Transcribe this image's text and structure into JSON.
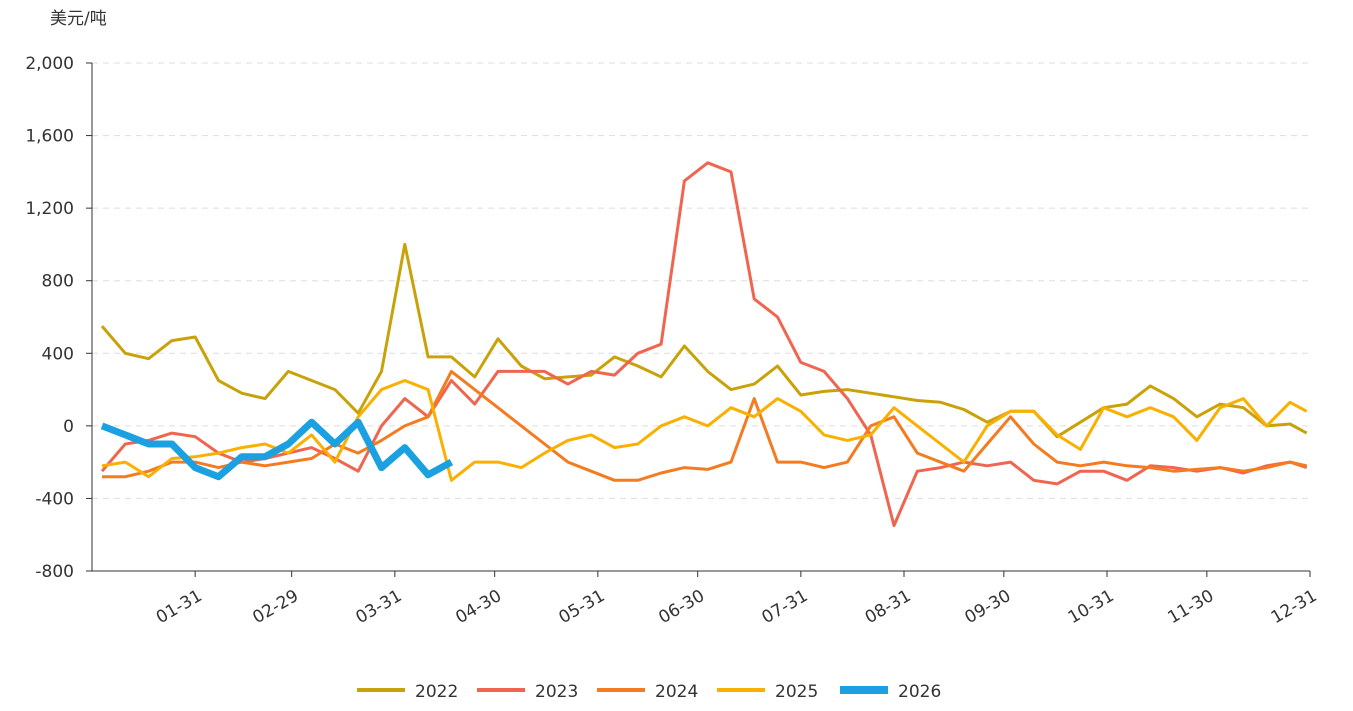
{
  "chart_data": {
    "type": "line",
    "y_label": "美元/吨",
    "xlim": [
      0,
      366
    ],
    "xticks": [
      {
        "value": 31,
        "label": "01-31"
      },
      {
        "value": 60,
        "label": "02-29"
      },
      {
        "value": 91,
        "label": "03-31"
      },
      {
        "value": 121,
        "label": "04-30"
      },
      {
        "value": 152,
        "label": "05-31"
      },
      {
        "value": 182,
        "label": "06-30"
      },
      {
        "value": 213,
        "label": "07-31"
      },
      {
        "value": 244,
        "label": "08-31"
      },
      {
        "value": 274,
        "label": "09-30"
      },
      {
        "value": 305,
        "label": "10-31"
      },
      {
        "value": 335,
        "label": "11-30"
      },
      {
        "value": 366,
        "label": "12-31"
      }
    ],
    "ylim": [
      -800,
      2000
    ],
    "yticks": [
      -800,
      -400,
      0,
      400,
      800,
      {
        "value": 1200,
        "label": "1,200"
      },
      {
        "value": 1600,
        "label": "1,600"
      },
      {
        "value": 2000,
        "label": "2,000"
      }
    ],
    "grid": true,
    "legend": "bottom",
    "x": [
      3,
      10,
      17,
      24,
      31,
      38,
      45,
      52,
      59,
      66,
      73,
      80,
      87,
      94,
      101,
      108,
      115,
      122,
      129,
      136,
      143,
      150,
      157,
      164,
      171,
      178,
      185,
      192,
      199,
      206,
      213,
      220,
      227,
      234,
      241,
      248,
      255,
      262,
      269,
      276,
      283,
      290,
      297,
      304,
      311,
      318,
      325,
      332,
      339,
      346,
      353,
      360,
      365
    ],
    "series": [
      {
        "name": "2022",
        "color": "#c9a20a",
        "width": 3,
        "values": [
          550,
          400,
          370,
          470,
          490,
          250,
          180,
          150,
          300,
          250,
          200,
          70,
          300,
          1000,
          380,
          380,
          270,
          480,
          330,
          260,
          270,
          280,
          380,
          330,
          270,
          440,
          300,
          200,
          230,
          330,
          170,
          190,
          200,
          180,
          160,
          140,
          130,
          90,
          20,
          80,
          80,
          -60,
          20,
          100,
          120,
          220,
          150,
          50,
          120,
          100,
          0,
          10,
          -40
        ]
      },
      {
        "name": "2023",
        "color": "#f0654f",
        "width": 3,
        "values": [
          -250,
          -100,
          -80,
          -40,
          -60,
          -150,
          -200,
          -180,
          -150,
          -120,
          -180,
          -250,
          0,
          150,
          50,
          250,
          120,
          300,
          300,
          300,
          230,
          300,
          280,
          400,
          450,
          1350,
          1450,
          1400,
          700,
          600,
          350,
          300,
          150,
          -50,
          -550,
          -250,
          -230,
          -200,
          -220,
          -200,
          -300,
          -320,
          -250,
          -250,
          -300,
          -220,
          -230,
          -250,
          -230,
          -260,
          -220,
          -200,
          -230
        ]
      },
      {
        "name": "2024",
        "color": "#f47b20",
        "width": 3,
        "values": [
          -280,
          -280,
          -250,
          -200,
          -200,
          -230,
          -200,
          -220,
          -200,
          -180,
          -100,
          -150,
          -80,
          0,
          50,
          300,
          200,
          100,
          0,
          -100,
          -200,
          -250,
          -300,
          -300,
          -260,
          -230,
          -240,
          -200,
          150,
          -200,
          -200,
          -230,
          -200,
          0,
          50,
          -150,
          -200,
          -250,
          -100,
          50,
          -100,
          -200,
          -220,
          -200,
          -220,
          -230,
          -250,
          -240,
          -230,
          -250,
          -230,
          -200,
          -220
        ]
      },
      {
        "name": "2025",
        "color": "#f9b000",
        "width": 3,
        "values": [
          -220,
          -200,
          -280,
          -180,
          -170,
          -150,
          -120,
          -100,
          -150,
          -50,
          -200,
          50,
          200,
          250,
          200,
          -300,
          -200,
          -200,
          -230,
          -150,
          -80,
          -50,
          -120,
          -100,
          0,
          50,
          0,
          100,
          50,
          150,
          80,
          -50,
          -80,
          -50,
          100,
          0,
          -100,
          -200,
          0,
          80,
          80,
          -50,
          -130,
          100,
          50,
          100,
          50,
          -80,
          100,
          150,
          0,
          130,
          80
        ]
      },
      {
        "name": "2026",
        "color": "#1ba1e2",
        "width": 7,
        "values": [
          0,
          -50,
          -100,
          -100,
          -230,
          -280,
          -170,
          -170,
          -100,
          20,
          -100,
          20,
          -230,
          -120,
          -270,
          -200,
          null,
          null,
          null,
          null,
          null,
          null,
          null,
          null,
          null,
          null,
          null,
          null,
          null,
          null,
          null,
          null,
          null,
          null,
          null,
          null,
          null,
          null,
          null,
          null,
          null,
          null,
          null,
          null,
          null,
          null,
          null,
          null,
          null,
          null,
          null,
          null,
          null
        ]
      }
    ]
  }
}
